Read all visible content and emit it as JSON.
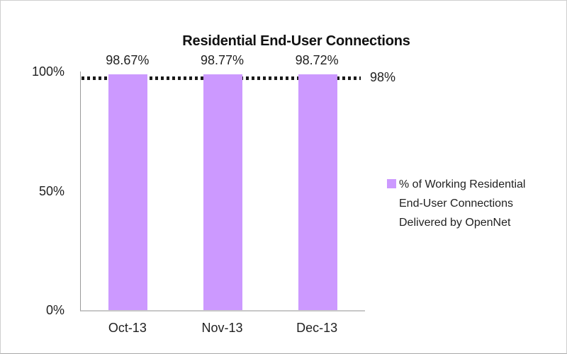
{
  "page": {
    "background": "#ffffff",
    "border_color": "#cfcfcf"
  },
  "chart_data": {
    "type": "bar",
    "title": "Residential End-User Connections",
    "categories": [
      "Oct-13",
      "Nov-13",
      "Dec-13"
    ],
    "series": [
      {
        "name": "% of Working Residential End-User Connections Delivered by OpenNet",
        "values": [
          98.67,
          98.77,
          98.72
        ]
      }
    ],
    "value_labels": [
      "98.67%",
      "98.77%",
      "98.72%"
    ],
    "xlabel": "",
    "ylabel": "",
    "ylim": [
      0,
      100
    ],
    "yticks": [
      {
        "value": 0,
        "label": "0%"
      },
      {
        "value": 50,
        "label": "50%"
      },
      {
        "value": 100,
        "label": "100%"
      }
    ],
    "reference_line": {
      "value": 98,
      "label": "98%",
      "style": "dotted",
      "color": "#1a1a1a"
    },
    "bar_color": "#CC99FF",
    "grid": false,
    "legend_position": "right"
  },
  "legend": {
    "swatch_color": "#CC99FF",
    "lines": [
      "% of Working Residential",
      "End-User Connections",
      "Delivered by OpenNet"
    ]
  }
}
